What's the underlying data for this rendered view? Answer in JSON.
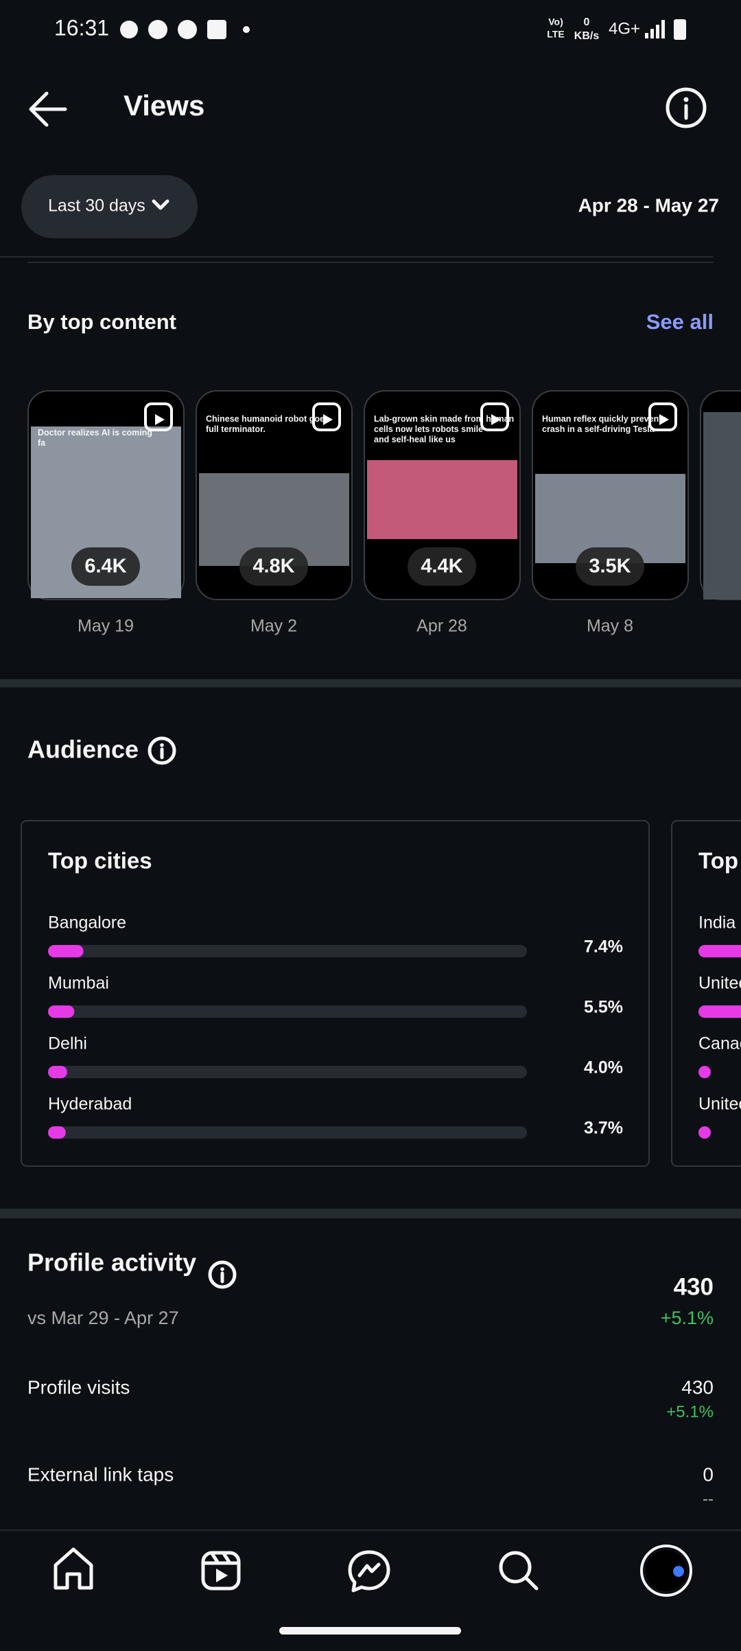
{
  "status_bar": {
    "time": "16:31",
    "volte_top": "Vo)",
    "volte_bottom": "LTE",
    "speed": "0",
    "speed_unit": "KB/s",
    "network": "4G+"
  },
  "header": {
    "title": "Views"
  },
  "filter": {
    "period": "Last 30 days",
    "date_range": "Apr 28 - May 27"
  },
  "top_content": {
    "title": "By top content",
    "see_all": "See all",
    "items": [
      {
        "caption": "Doctor realizes AI is coming fa",
        "views": "6.4K",
        "date": "May 19"
      },
      {
        "caption": "Chinese humanoid robot goes full terminator.",
        "views": "4.8K",
        "date": "May 2"
      },
      {
        "caption": "Lab-grown skin made from human cells now lets robots smile and self-heal like us",
        "views": "4.4K",
        "date": "Apr 28"
      },
      {
        "caption": "Human reflex quickly prevents crash in a self-driving Tesla",
        "views": "3.5K",
        "date": "May 8"
      }
    ]
  },
  "audience": {
    "title": "Audience",
    "top_cities": {
      "title": "Top cities",
      "rows": [
        {
          "name": "Bangalore",
          "value": 7.4,
          "label": "7.4%"
        },
        {
          "name": "Mumbai",
          "value": 5.5,
          "label": "5.5%"
        },
        {
          "name": "Delhi",
          "value": 4.0,
          "label": "4.0%"
        },
        {
          "name": "Hyderabad",
          "value": 3.7,
          "label": "3.7%"
        }
      ]
    },
    "second_card": {
      "title": "Top",
      "rows": [
        "India",
        "Unitec",
        "Canac",
        "Unitec"
      ]
    }
  },
  "profile_activity": {
    "title": "Profile activity",
    "comparison": "vs Mar 29 - Apr 27",
    "total": "430",
    "change": "+5.1%",
    "rows": [
      {
        "label": "Profile visits",
        "value": "430",
        "change": "+5.1%"
      },
      {
        "label": "External link taps",
        "value": "0",
        "change": "--"
      }
    ]
  }
}
